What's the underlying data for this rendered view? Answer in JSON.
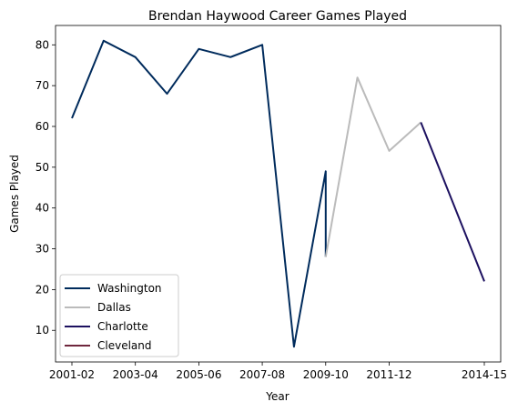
{
  "chart_data": {
    "type": "line",
    "title": "Brendan Haywood Career Games Played",
    "xlabel": "Year",
    "ylabel": "Games Played",
    "x_ticks": [
      "2001-02",
      "2003-04",
      "2005-06",
      "2007-08",
      "2009-10",
      "2011-12",
      "2014-15"
    ],
    "y_ticks": [
      10,
      20,
      30,
      40,
      50,
      60,
      70,
      80
    ],
    "ylim": [
      2.25,
      84.75
    ],
    "grid": false,
    "legend_position": "lower-left",
    "series": [
      {
        "name": "Washington",
        "color": "#002B5C",
        "points": [
          {
            "x": "2001-02",
            "y": 62
          },
          {
            "x": "2002-03",
            "y": 81
          },
          {
            "x": "2003-04",
            "y": 77
          },
          {
            "x": "2004-05",
            "y": 68
          },
          {
            "x": "2005-06",
            "y": 79
          },
          {
            "x": "2006-07",
            "y": 77
          },
          {
            "x": "2007-08",
            "y": 80
          },
          {
            "x": "2008-09",
            "y": 6
          },
          {
            "x": "2009-10",
            "y": 49
          },
          {
            "x": "2009-10",
            "y": 28
          }
        ]
      },
      {
        "name": "Dallas",
        "color": "#BBBBBB",
        "points": [
          {
            "x": "2009-10",
            "y": 28
          },
          {
            "x": "2010-11",
            "y": 72
          },
          {
            "x": "2011-12",
            "y": 54
          },
          {
            "x": "2012-13",
            "y": 61
          }
        ]
      },
      {
        "name": "Charlotte",
        "color": "#1D1160",
        "points": [
          {
            "x": "2012-13",
            "y": 61
          },
          {
            "x": "2014-15",
            "y": 22
          }
        ]
      },
      {
        "name": "Cleveland",
        "color": "#6F263D",
        "points": []
      }
    ]
  }
}
